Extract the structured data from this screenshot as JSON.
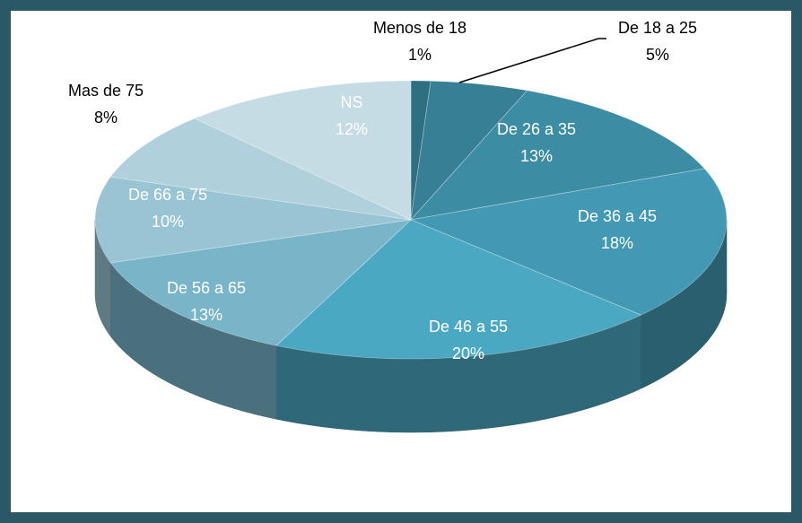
{
  "chart_data": {
    "type": "pie",
    "categories": [
      "Menos de 18",
      "De 18 a 25",
      "De 26 a 35",
      "De 36 a 45",
      "De 46 a 55",
      "De 56 a 65",
      "De 66 a 75",
      "Mas de 75",
      "NS"
    ],
    "values": [
      1,
      5,
      13,
      18,
      20,
      13,
      10,
      8,
      12
    ],
    "value_labels": [
      "1%",
      "5%",
      "13%",
      "18%",
      "20%",
      "13%",
      "10%",
      "8%",
      "12%"
    ],
    "colors": [
      "#2e6f82",
      "#367f94",
      "#3c8da4",
      "#4399b3",
      "#4aa8c3",
      "#79b5c9",
      "#98c4d4",
      "#b0d0dc",
      "#c6dce4"
    ]
  }
}
